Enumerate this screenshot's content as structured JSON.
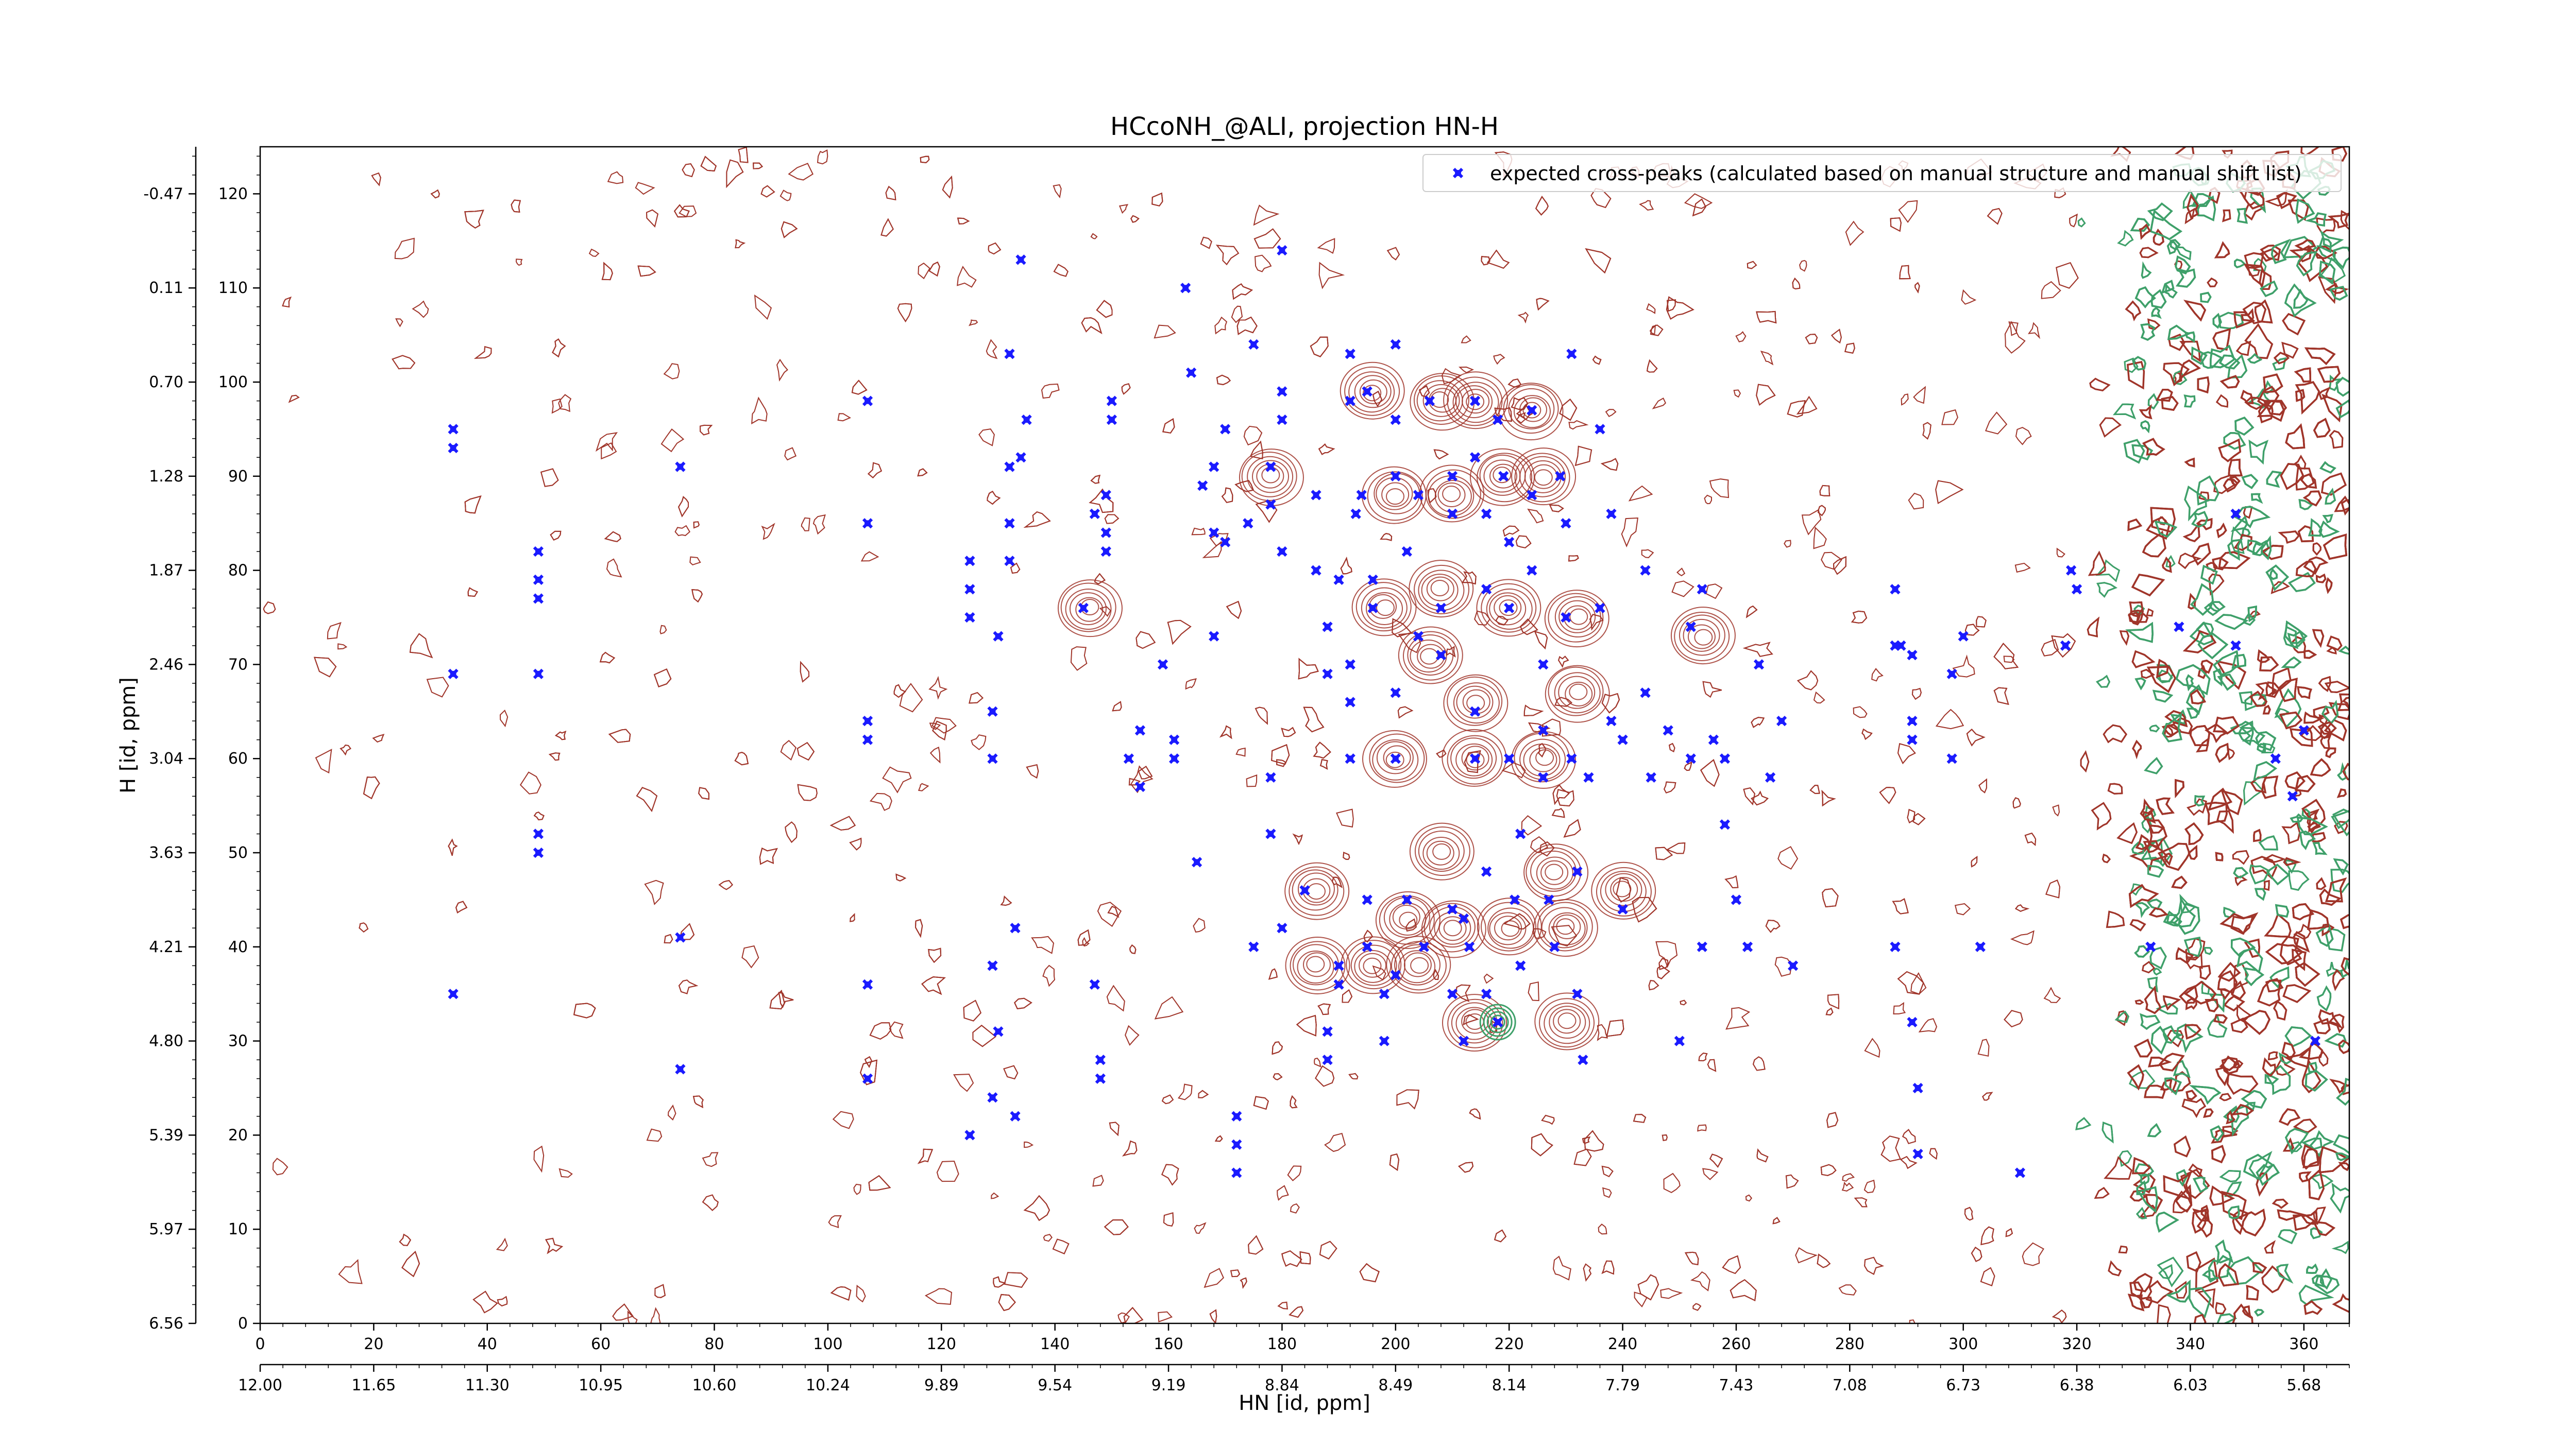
{
  "chart_data": {
    "type": "scatter",
    "title": "HCcoNH_@ALI, projection HN-H",
    "xlabel": "HN [id, ppm]",
    "ylabel": "H [id, ppm]",
    "x_index_range": [
      0,
      368
    ],
    "y_index_range": [
      0,
      125
    ],
    "x_index_ticks": [
      0,
      20,
      40,
      60,
      80,
      100,
      120,
      140,
      160,
      180,
      200,
      220,
      240,
      260,
      280,
      300,
      320,
      340,
      360
    ],
    "y_index_ticks": [
      0,
      10,
      20,
      30,
      40,
      50,
      60,
      70,
      80,
      90,
      100,
      110,
      120
    ],
    "x_ppm_ticks": [
      "12.00",
      "11.65",
      "11.30",
      "10.95",
      "10.60",
      "10.24",
      "9.89",
      "9.54",
      "9.19",
      "8.84",
      "8.49",
      "8.14",
      "7.79",
      "7.43",
      "7.08",
      "6.73",
      "6.38",
      "6.03",
      "5.68"
    ],
    "y_ppm_ticks": [
      "6.56",
      "5.97",
      "5.39",
      "4.80",
      "4.21",
      "3.63",
      "3.04",
      "2.46",
      "1.87",
      "1.28",
      "0.70",
      "0.11",
      "-0.47"
    ],
    "legend": {
      "label": "expected cross-peaks (calculated based on manual structure and manual shift list)",
      "placement": "top-right"
    },
    "colors": {
      "peaks": "#1a1aff",
      "contour_positive": "#a0352a",
      "contour_negative": "#3fa06a"
    },
    "series": [
      {
        "name": "expected cross-peaks (calculated based on manual structure and manual shift list)",
        "points": [
          [
            34,
            95
          ],
          [
            34,
            93
          ],
          [
            34,
            69
          ],
          [
            34,
            35
          ],
          [
            49,
            82
          ],
          [
            49,
            79
          ],
          [
            49,
            77
          ],
          [
            49,
            69
          ],
          [
            49,
            52
          ],
          [
            49,
            50
          ],
          [
            74,
            41
          ],
          [
            74,
            27
          ],
          [
            74,
            91
          ],
          [
            107,
            98
          ],
          [
            107,
            85
          ],
          [
            107,
            64
          ],
          [
            107,
            62
          ],
          [
            107,
            36
          ],
          [
            107,
            26
          ],
          [
            125,
            78
          ],
          [
            125,
            81
          ],
          [
            125,
            75
          ],
          [
            125,
            20
          ],
          [
            129,
            65
          ],
          [
            129,
            60
          ],
          [
            129,
            24
          ],
          [
            129,
            38
          ],
          [
            130,
            31
          ],
          [
            130,
            73
          ],
          [
            132,
            81
          ],
          [
            132,
            85
          ],
          [
            132,
            103
          ],
          [
            132,
            91
          ],
          [
            133,
            42
          ],
          [
            133,
            22
          ],
          [
            134,
            113
          ],
          [
            134,
            92
          ],
          [
            135,
            96
          ],
          [
            145,
            76
          ],
          [
            147,
            86
          ],
          [
            147,
            36
          ],
          [
            148,
            28
          ],
          [
            148,
            26
          ],
          [
            149,
            84
          ],
          [
            149,
            82
          ],
          [
            149,
            88
          ],
          [
            150,
            98
          ],
          [
            150,
            96
          ],
          [
            153,
            60
          ],
          [
            155,
            63
          ],
          [
            155,
            57
          ],
          [
            159,
            70
          ],
          [
            161,
            62
          ],
          [
            161,
            60
          ],
          [
            163,
            110
          ],
          [
            164,
            101
          ],
          [
            165,
            49
          ],
          [
            166,
            89
          ],
          [
            168,
            73
          ],
          [
            168,
            91
          ],
          [
            168,
            84
          ],
          [
            170,
            95
          ],
          [
            170,
            83
          ],
          [
            172,
            16
          ],
          [
            172,
            19
          ],
          [
            172,
            22
          ],
          [
            174,
            85
          ],
          [
            175,
            40
          ],
          [
            175,
            104
          ],
          [
            178,
            91
          ],
          [
            178,
            87
          ],
          [
            178,
            52
          ],
          [
            178,
            58
          ],
          [
            180,
            99
          ],
          [
            180,
            96
          ],
          [
            180,
            82
          ],
          [
            180,
            42
          ],
          [
            180,
            114
          ],
          [
            184,
            46
          ],
          [
            186,
            80
          ],
          [
            186,
            88
          ],
          [
            188,
            31
          ],
          [
            188,
            28
          ],
          [
            188,
            74
          ],
          [
            188,
            69
          ],
          [
            190,
            79
          ],
          [
            190,
            38
          ],
          [
            190,
            36
          ],
          [
            192,
            103
          ],
          [
            192,
            98
          ],
          [
            192,
            60
          ],
          [
            192,
            66
          ],
          [
            192,
            70
          ],
          [
            193,
            86
          ],
          [
            194,
            88
          ],
          [
            195,
            99
          ],
          [
            195,
            40
          ],
          [
            195,
            45
          ],
          [
            196,
            76
          ],
          [
            196,
            79
          ],
          [
            198,
            35
          ],
          [
            198,
            30
          ],
          [
            200,
            104
          ],
          [
            200,
            96
          ],
          [
            200,
            90
          ],
          [
            200,
            67
          ],
          [
            200,
            60
          ],
          [
            200,
            37
          ],
          [
            202,
            82
          ],
          [
            202,
            45
          ],
          [
            204,
            73
          ],
          [
            204,
            88
          ],
          [
            205,
            40
          ],
          [
            206,
            98
          ],
          [
            208,
            76
          ],
          [
            208,
            71
          ],
          [
            210,
            86
          ],
          [
            210,
            90
          ],
          [
            210,
            44
          ],
          [
            210,
            35
          ],
          [
            212,
            43
          ],
          [
            212,
            30
          ],
          [
            213,
            40
          ],
          [
            214,
            98
          ],
          [
            214,
            92
          ],
          [
            214,
            65
          ],
          [
            214,
            60
          ],
          [
            216,
            86
          ],
          [
            216,
            78
          ],
          [
            216,
            48
          ],
          [
            216,
            35
          ],
          [
            218,
            32
          ],
          [
            218,
            96
          ],
          [
            219,
            90
          ],
          [
            220,
            83
          ],
          [
            220,
            76
          ],
          [
            220,
            60
          ],
          [
            221,
            45
          ],
          [
            222,
            52
          ],
          [
            222,
            38
          ],
          [
            224,
            88
          ],
          [
            224,
            97
          ],
          [
            224,
            80
          ],
          [
            226,
            70
          ],
          [
            226,
            63
          ],
          [
            226,
            58
          ],
          [
            227,
            45
          ],
          [
            228,
            40
          ],
          [
            229,
            90
          ],
          [
            230,
            85
          ],
          [
            230,
            75
          ],
          [
            231,
            103
          ],
          [
            231,
            60
          ],
          [
            232,
            48
          ],
          [
            232,
            35
          ],
          [
            233,
            28
          ],
          [
            234,
            58
          ],
          [
            236,
            95
          ],
          [
            236,
            76
          ],
          [
            238,
            86
          ],
          [
            238,
            64
          ],
          [
            240,
            62
          ],
          [
            240,
            44
          ],
          [
            244,
            80
          ],
          [
            244,
            67
          ],
          [
            245,
            58
          ],
          [
            248,
            63
          ],
          [
            250,
            30
          ],
          [
            252,
            74
          ],
          [
            252,
            60
          ],
          [
            254,
            78
          ],
          [
            254,
            40
          ],
          [
            256,
            62
          ],
          [
            258,
            60
          ],
          [
            258,
            53
          ],
          [
            260,
            45
          ],
          [
            262,
            40
          ],
          [
            264,
            70
          ],
          [
            266,
            58
          ],
          [
            268,
            64
          ],
          [
            270,
            38
          ],
          [
            288,
            78
          ],
          [
            288,
            72
          ],
          [
            288,
            40
          ],
          [
            289,
            72
          ],
          [
            291,
            64
          ],
          [
            291,
            62
          ],
          [
            291,
            71
          ],
          [
            291,
            32
          ],
          [
            292,
            25
          ],
          [
            292,
            18
          ],
          [
            298,
            69
          ],
          [
            298,
            60
          ],
          [
            300,
            73
          ],
          [
            303,
            40
          ],
          [
            310,
            16
          ],
          [
            318,
            72
          ],
          [
            319,
            80
          ],
          [
            320,
            78
          ],
          [
            333,
            40
          ],
          [
            338,
            74
          ],
          [
            348,
            86
          ],
          [
            348,
            72
          ],
          [
            355,
            60
          ],
          [
            358,
            56
          ],
          [
            360,
            63
          ],
          [
            362,
            30
          ]
        ]
      }
    ]
  }
}
